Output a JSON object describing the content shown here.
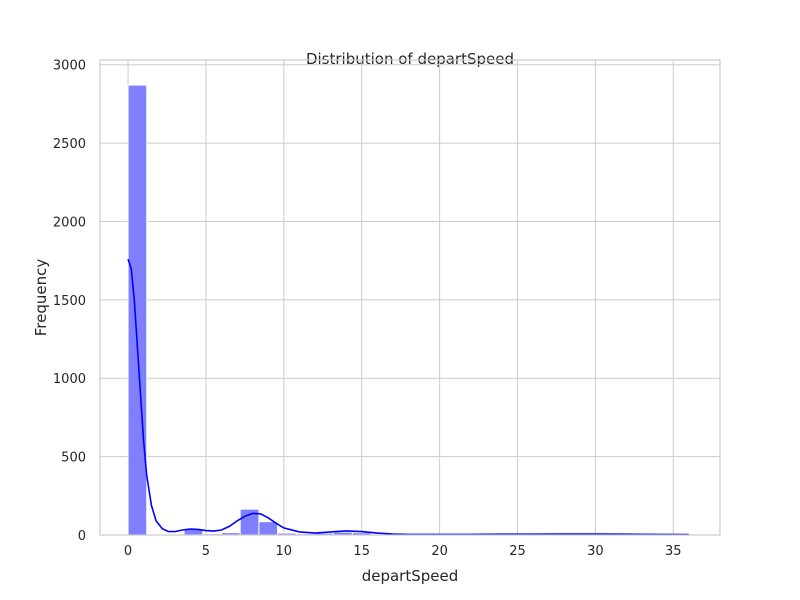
{
  "chart_data": {
    "type": "bar",
    "title": "Distribution of departSpeed",
    "xlabel": "departSpeed",
    "ylabel": "Frequency",
    "xlim": [
      -1.8,
      38.0
    ],
    "ylim": [
      0,
      3030
    ],
    "xticks": [
      0,
      5,
      10,
      15,
      20,
      25,
      30,
      35
    ],
    "yticks": [
      0,
      500,
      1000,
      1500,
      2000,
      2500,
      3000
    ],
    "grid": true,
    "bar_color": "#7f7fff",
    "kde_color": "#0000ff",
    "bins": [
      {
        "x0": 0.0,
        "x1": 1.2,
        "count": 2870
      },
      {
        "x0": 1.2,
        "x1": 2.4,
        "count": 0
      },
      {
        "x0": 2.4,
        "x1": 3.6,
        "count": 0
      },
      {
        "x0": 3.6,
        "x1": 4.8,
        "count": 40
      },
      {
        "x0": 4.8,
        "x1": 6.0,
        "count": 8
      },
      {
        "x0": 6.0,
        "x1": 7.2,
        "count": 15
      },
      {
        "x0": 7.2,
        "x1": 8.4,
        "count": 165
      },
      {
        "x0": 8.4,
        "x1": 9.6,
        "count": 85
      },
      {
        "x0": 9.6,
        "x1": 10.8,
        "count": 12
      },
      {
        "x0": 10.8,
        "x1": 12.0,
        "count": 8
      },
      {
        "x0": 12.0,
        "x1": 13.2,
        "count": 12
      },
      {
        "x0": 13.2,
        "x1": 14.4,
        "count": 18
      },
      {
        "x0": 14.4,
        "x1": 15.6,
        "count": 15
      },
      {
        "x0": 15.6,
        "x1": 16.8,
        "count": 6
      },
      {
        "x0": 16.8,
        "x1": 18.0,
        "count": 4
      },
      {
        "x0": 18.0,
        "x1": 19.2,
        "count": 3
      },
      {
        "x0": 19.2,
        "x1": 20.4,
        "count": 6
      },
      {
        "x0": 20.4,
        "x1": 21.6,
        "count": 5
      },
      {
        "x0": 21.6,
        "x1": 22.8,
        "count": 4
      },
      {
        "x0": 22.8,
        "x1": 24.0,
        "count": 5
      },
      {
        "x0": 24.0,
        "x1": 25.2,
        "count": 6
      },
      {
        "x0": 25.2,
        "x1": 26.4,
        "count": 5
      },
      {
        "x0": 26.4,
        "x1": 27.6,
        "count": 6
      },
      {
        "x0": 27.6,
        "x1": 28.8,
        "count": 7
      },
      {
        "x0": 28.8,
        "x1": 30.0,
        "count": 8
      },
      {
        "x0": 30.0,
        "x1": 31.2,
        "count": 6
      },
      {
        "x0": 31.2,
        "x1": 32.4,
        "count": 4
      },
      {
        "x0": 32.4,
        "x1": 33.6,
        "count": 3
      },
      {
        "x0": 33.6,
        "x1": 34.8,
        "count": 4
      },
      {
        "x0": 34.8,
        "x1": 36.0,
        "count": 3
      }
    ],
    "kde": {
      "x": [
        0,
        0.2,
        0.4,
        0.6,
        0.8,
        1.0,
        1.2,
        1.5,
        1.8,
        2.2,
        2.6,
        3.0,
        3.5,
        4.0,
        4.5,
        5.0,
        5.5,
        6.0,
        6.5,
        7.0,
        7.5,
        8.0,
        8.5,
        9.0,
        9.5,
        10.0,
        11.0,
        12.0,
        13.0,
        14.0,
        15.0,
        16.0,
        17.0,
        18.0,
        20.0,
        22.0,
        24.0,
        26.0,
        28.0,
        30.0,
        32.0,
        34.0,
        36.0
      ],
      "y": [
        1760,
        1700,
        1500,
        1200,
        900,
        600,
        380,
        190,
        90,
        40,
        22,
        22,
        32,
        38,
        36,
        28,
        25,
        32,
        55,
        90,
        120,
        138,
        135,
        110,
        75,
        45,
        20,
        12,
        20,
        26,
        22,
        12,
        6,
        4,
        4,
        4,
        5,
        5,
        6,
        6,
        5,
        4,
        3
      ]
    }
  }
}
